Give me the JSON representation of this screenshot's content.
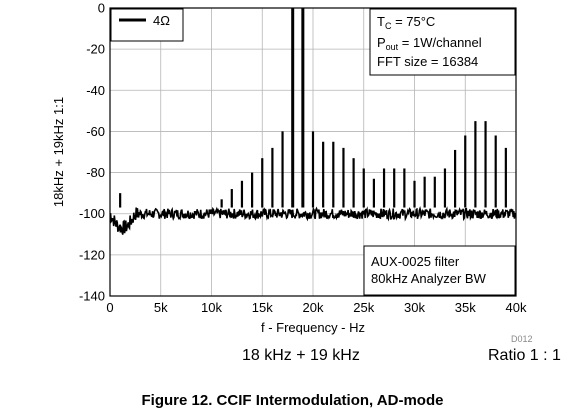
{
  "chart_data": {
    "type": "line",
    "xlabel": "f - Frequency - Hz",
    "ylabel": "18kHz + 19kHz 1:1",
    "xlim": [
      0,
      40000
    ],
    "ylim": [
      -140,
      0
    ],
    "x_ticks": [
      0,
      5000,
      10000,
      15000,
      20000,
      25000,
      30000,
      35000,
      40000
    ],
    "x_tick_labels": [
      "0",
      "5k",
      "10k",
      "15k",
      "20k",
      "25k",
      "30k",
      "35k",
      "40k"
    ],
    "y_ticks": [
      0,
      -20,
      -40,
      -60,
      -80,
      -100,
      -120,
      -140
    ],
    "y_tick_labels": [
      "0",
      "-20",
      "-40",
      "-60",
      "-80",
      "-100",
      "-120",
      "-140"
    ],
    "grid": true,
    "legend_position": "top-left",
    "series": [
      {
        "name": "4Ω",
        "color": "#000000",
        "noise_floor": -100,
        "peaks": [
          {
            "x": 1000,
            "y": -90
          },
          {
            "x": 11000,
            "y": -93
          },
          {
            "x": 12000,
            "y": -88
          },
          {
            "x": 13000,
            "y": -84
          },
          {
            "x": 14000,
            "y": -80
          },
          {
            "x": 15000,
            "y": -73
          },
          {
            "x": 16000,
            "y": -68
          },
          {
            "x": 17000,
            "y": -60
          },
          {
            "x": 18000,
            "y": 0
          },
          {
            "x": 19000,
            "y": 0
          },
          {
            "x": 20000,
            "y": -60
          },
          {
            "x": 21000,
            "y": -65
          },
          {
            "x": 22000,
            "y": -65
          },
          {
            "x": 23000,
            "y": -68
          },
          {
            "x": 24000,
            "y": -73
          },
          {
            "x": 25000,
            "y": -78
          },
          {
            "x": 26000,
            "y": -83
          },
          {
            "x": 27000,
            "y": -78
          },
          {
            "x": 28000,
            "y": -78
          },
          {
            "x": 29000,
            "y": -78
          },
          {
            "x": 30000,
            "y": -84
          },
          {
            "x": 31000,
            "y": -82
          },
          {
            "x": 32000,
            "y": -82
          },
          {
            "x": 33000,
            "y": -78
          },
          {
            "x": 34000,
            "y": -69
          },
          {
            "x": 35000,
            "y": -62
          },
          {
            "x": 36000,
            "y": -55
          },
          {
            "x": 37000,
            "y": -55
          },
          {
            "x": 38000,
            "y": -62
          },
          {
            "x": 39000,
            "y": -68
          }
        ]
      }
    ],
    "annotations": {
      "conditions": [
        "T",
        "C",
        " = 75°C",
        "P",
        "out",
        " = 1W/channel",
        "FFT size = 16384"
      ],
      "filter": [
        "AUX-0025 filter",
        "80kHz Analyzer BW"
      ],
      "code": "D012"
    }
  },
  "subtitle_left": "18 kHz + 19 kHz",
  "subtitle_right": "Ratio 1 : 1",
  "caption": "Figure 12. CCIF Intermodulation, AD-mode"
}
